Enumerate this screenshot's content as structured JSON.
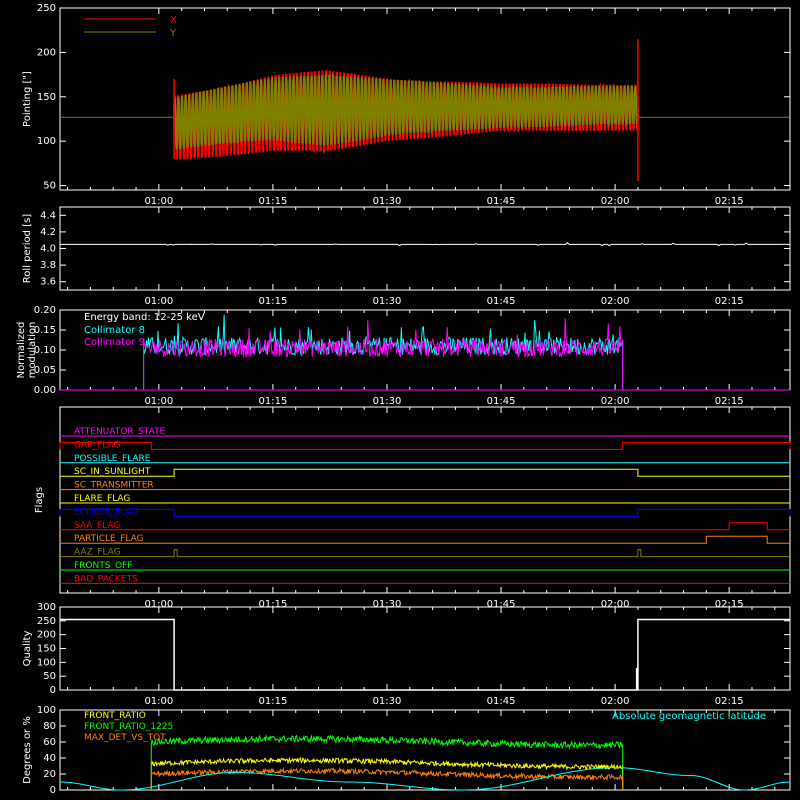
{
  "time_ticks": [
    "01:00",
    "01:15",
    "01:30",
    "01:45",
    "02:00",
    "02:15"
  ],
  "chart_data": [
    {
      "type": "line",
      "panel": "pointing",
      "ylabel": "Pointing [\"]",
      "ylim": [
        45,
        250
      ],
      "yticks": [
        50,
        100,
        150,
        200,
        250
      ],
      "legend": [
        "X",
        "Y"
      ],
      "legend_placement": "top-left",
      "x": [
        "00:47",
        "01:02",
        "01:15",
        "01:22",
        "01:30",
        "01:45",
        "02:00",
        "02:03",
        "02:23"
      ],
      "series": [
        {
          "name": "X",
          "color": "#ff0000",
          "envelope_max": [
            127,
            152,
            175,
            180,
            172,
            165,
            165,
            165,
            127
          ],
          "envelope_min": [
            127,
            78,
            88,
            85,
            100,
            110,
            112,
            112,
            127
          ]
        },
        {
          "name": "Y",
          "color": "#7f7f00",
          "envelope_max": [
            127,
            150,
            172,
            178,
            170,
            162,
            162,
            162,
            127
          ],
          "envelope_min": [
            127,
            90,
            100,
            95,
            105,
            115,
            118,
            118,
            127
          ]
        }
      ]
    },
    {
      "type": "line",
      "panel": "roll",
      "ylabel": "Roll period [s]",
      "ylim": [
        3.5,
        4.5
      ],
      "yticks": [
        "3.6",
        "3.8",
        "4.0",
        "4.2",
        "4.4"
      ],
      "value": 4.05
    },
    {
      "type": "line",
      "panel": "modulation",
      "ylabel": "Normalized modulation",
      "ylim": [
        0,
        0.2
      ],
      "yticks": [
        "0.00",
        "0.05",
        "0.10",
        "0.15",
        "0.20"
      ],
      "annotation": "Energy band: 12-25 keV",
      "series": [
        {
          "name": "Collimator 8",
          "color": "#00ffff",
          "start": "00:58",
          "end": "02:01",
          "mean": 0.11
        },
        {
          "name": "Collimator 9",
          "color": "#ff00ff",
          "start": "00:58",
          "end": "02:01",
          "mean": 0.105
        }
      ]
    },
    {
      "type": "line",
      "panel": "flags",
      "ylabel": "Flags",
      "flags": [
        {
          "name": "ATTENUATOR_STATE",
          "color": "#ff00ff",
          "intervals": []
        },
        {
          "name": "GAP_FLAG",
          "color": "#ff0000",
          "intervals": [
            [
              "00:47",
              "00:59"
            ],
            [
              "02:01",
              "02:23"
            ]
          ]
        },
        {
          "name": "POSSIBLE_FLARE",
          "color": "#00ffff",
          "intervals": []
        },
        {
          "name": "SC_IN_SUNLIGHT",
          "color": "#ffff00",
          "intervals": [
            [
              "01:02",
              "02:03"
            ]
          ]
        },
        {
          "name": "SC_TRANSMITTER",
          "color": "#ff7f00",
          "intervals": []
        },
        {
          "name": "FLARE_FLAG",
          "color": "#ffff00",
          "intervals": []
        },
        {
          "name": "ECLIPSE_FLAG",
          "color": "#0000ff",
          "intervals": [
            [
              "00:47",
              "01:02"
            ],
            [
              "02:03",
              "02:23"
            ]
          ]
        },
        {
          "name": "SAA_FLAG",
          "color": "#ff0000",
          "intervals": [
            [
              "02:15",
              "02:20"
            ]
          ]
        },
        {
          "name": "PARTICLE_FLAG",
          "color": "#ff7f00",
          "intervals": [
            [
              "02:12",
              "02:20"
            ]
          ]
        },
        {
          "name": "AAZ_FLAG",
          "color": "#7f7f00",
          "intervals": [
            [
              "01:02",
              "01:02"
            ],
            [
              "02:03",
              "02:03"
            ]
          ]
        },
        {
          "name": "FRONTS_OFF",
          "color": "#00ff00",
          "intervals": []
        },
        {
          "name": "BAD_PACKETS",
          "color": "#ff0000",
          "intervals": []
        }
      ]
    },
    {
      "type": "line",
      "panel": "quality",
      "ylabel": "Quality",
      "ylim": [
        0,
        300
      ],
      "yticks": [
        0,
        50,
        100,
        150,
        200,
        250,
        300
      ],
      "x": [
        "00:47",
        "01:02",
        "01:02",
        "02:03",
        "02:03",
        "02:23"
      ],
      "y": [
        255,
        255,
        0,
        0,
        255,
        255
      ]
    },
    {
      "type": "line",
      "panel": "geo",
      "ylabel": "Degrees or %",
      "ylim": [
        0,
        100
      ],
      "yticks": [
        0,
        20,
        40,
        60,
        80,
        100
      ],
      "annotation": "Absolute geomagnetic latitude",
      "series": [
        {
          "name": "FRONT_RATIO",
          "color": "#ffff00",
          "start": "00:59",
          "end": "02:01",
          "mean": 33
        },
        {
          "name": "FRONT_RATIO_1225",
          "color": "#00ff00",
          "start": "00:59",
          "end": "02:01",
          "mean": 60
        },
        {
          "name": "MAX_DET_VS_TOT",
          "color": "#ff7f00",
          "start": "00:59",
          "end": "02:01",
          "mean": 20
        },
        {
          "name": "Absolute geomagnetic latitude",
          "color": "#00ffff",
          "x": [
            "00:47",
            "00:55",
            "01:10",
            "01:25",
            "01:40",
            "02:00",
            "02:10",
            "02:17",
            "02:23"
          ],
          "y": [
            10,
            0,
            22,
            10,
            0,
            28,
            18,
            0,
            10
          ]
        }
      ]
    }
  ]
}
